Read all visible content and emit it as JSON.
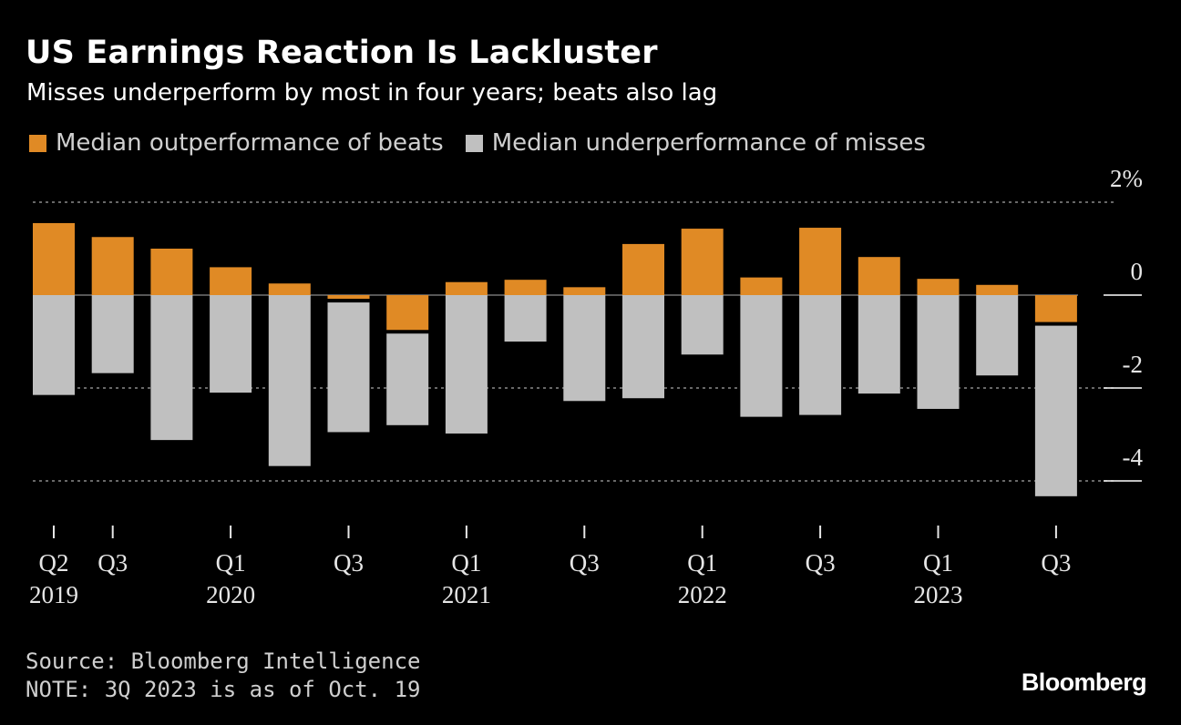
{
  "title": "US Earnings Reaction Is Lackluster",
  "subtitle": "Misses underperform by most in four years; beats also lag",
  "legend": [
    {
      "label": "Median outperformance of beats",
      "color": "#e08a25"
    },
    {
      "label": "Median underperformance of misses",
      "color": "#c0c0c0"
    }
  ],
  "source": "Source: Bloomberg Intelligence",
  "note": "NOTE: 3Q 2023 is as of Oct. 19",
  "brand": "Bloomberg",
  "chart_data": {
    "type": "bar",
    "categories": [
      "Q2 2019",
      "Q3 2019",
      "Q4 2019",
      "Q1 2020",
      "Q2 2020",
      "Q3 2020",
      "Q4 2020",
      "Q1 2021",
      "Q2 2021",
      "Q3 2021",
      "Q4 2021",
      "Q1 2022",
      "Q2 2022",
      "Q3 2022",
      "Q4 2022",
      "Q1 2023",
      "Q2 2023",
      "Q3 2023"
    ],
    "series": [
      {
        "name": "Median outperformance of beats",
        "color": "#e08a25",
        "values": [
          1.55,
          1.25,
          1.0,
          0.6,
          0.25,
          -0.08,
          -0.75,
          0.28,
          0.33,
          0.17,
          1.1,
          1.43,
          0.38,
          1.45,
          0.82,
          0.35,
          0.22,
          -0.58
        ]
      },
      {
        "name": "Median underperformance of misses",
        "color": "#c0c0c0",
        "values": [
          -2.15,
          -1.68,
          -3.12,
          -2.1,
          -3.68,
          -2.95,
          -2.8,
          -2.98,
          -1.0,
          -2.28,
          -2.22,
          -1.28,
          -2.62,
          -2.58,
          -2.12,
          -2.45,
          -1.73,
          -4.33
        ]
      }
    ],
    "stacked_mode": "misses start from zero; when beats are negative, misses start below beats",
    "ylim": [
      -4.6,
      2.2
    ],
    "yticks": [
      {
        "value": 2,
        "label": "2%"
      },
      {
        "value": 0,
        "label": "0"
      },
      {
        "value": -2,
        "label": "-2"
      },
      {
        "value": -4,
        "label": "-4"
      }
    ],
    "xtick_labels": [
      {
        "index": 0,
        "top": "Q2",
        "bottom": "2019"
      },
      {
        "index": 1,
        "top": "Q3",
        "bottom": ""
      },
      {
        "index": 3,
        "top": "Q1",
        "bottom": "2020"
      },
      {
        "index": 5,
        "top": "Q3",
        "bottom": ""
      },
      {
        "index": 7,
        "top": "Q1",
        "bottom": "2021"
      },
      {
        "index": 9,
        "top": "Q3",
        "bottom": ""
      },
      {
        "index": 11,
        "top": "Q1",
        "bottom": "2022"
      },
      {
        "index": 13,
        "top": "Q3",
        "bottom": ""
      },
      {
        "index": 15,
        "top": "Q1",
        "bottom": "2023"
      },
      {
        "index": 17,
        "top": "Q3",
        "bottom": ""
      }
    ],
    "grid": true,
    "legend_position": "top-left"
  }
}
